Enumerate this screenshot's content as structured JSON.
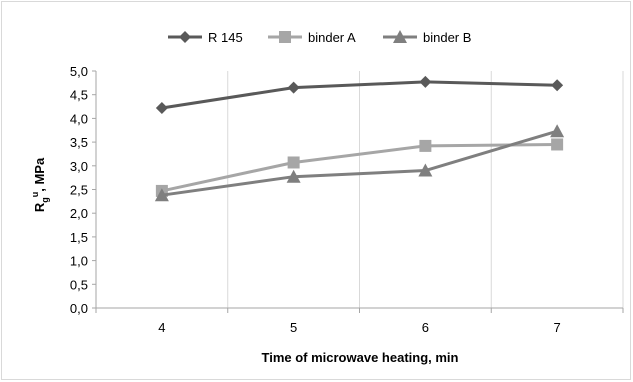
{
  "chart_data": {
    "type": "line",
    "x": [
      4,
      5,
      6,
      7
    ],
    "xlabel": "Time of microwave heating, min",
    "ylabel": {
      "main": "R",
      "sub": "g",
      "sup": "u",
      "rest": ", MPa"
    },
    "ylim": [
      0,
      5
    ],
    "yticks": [
      "0,0",
      "0,5",
      "1,0",
      "1,5",
      "2,0",
      "2,5",
      "3,0",
      "3,5",
      "4,0",
      "4,5",
      "5,0"
    ],
    "xticks": [
      "4",
      "5",
      "6",
      "7"
    ],
    "grid": "vertical",
    "legend": "top",
    "series": [
      {
        "name": "R 145",
        "values": [
          4.22,
          4.65,
          4.77,
          4.7
        ],
        "color": "#595959",
        "marker": "diamond"
      },
      {
        "name": "binder A",
        "values": [
          2.47,
          3.07,
          3.42,
          3.45
        ],
        "color": "#a6a6a6",
        "marker": "square"
      },
      {
        "name": "binder B",
        "values": [
          2.38,
          2.77,
          2.9,
          3.73
        ],
        "color": "#7f7f7f",
        "marker": "triangle"
      }
    ]
  }
}
